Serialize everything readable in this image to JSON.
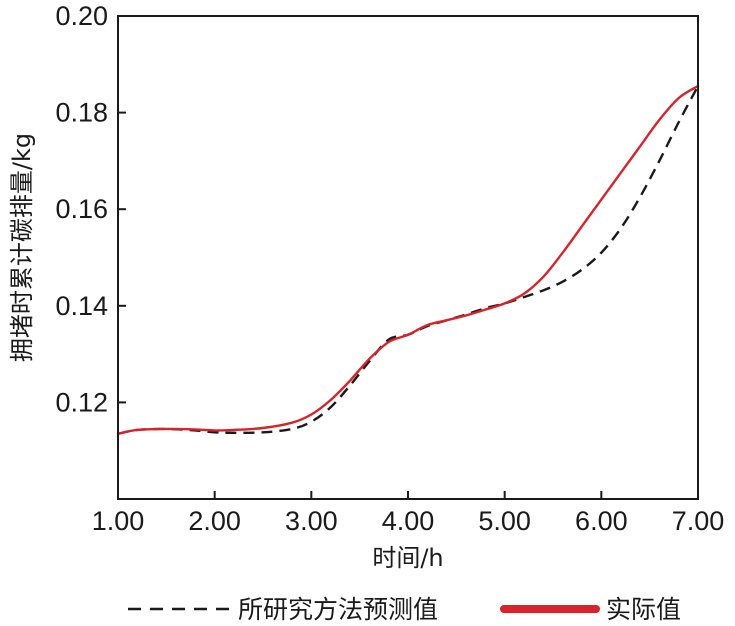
{
  "chart_data": {
    "type": "line",
    "xlabel": "时间/h",
    "ylabel": "拥堵时累计碳排量/kg",
    "xlim": [
      1.0,
      7.0
    ],
    "ylim": [
      0.1,
      0.2
    ],
    "x_ticks": [
      "1.00",
      "2.00",
      "3.00",
      "4.00",
      "5.00",
      "6.00",
      "7.00"
    ],
    "y_ticks": [
      "0.12",
      "0.14",
      "0.16",
      "0.18",
      "0.20"
    ],
    "grid": false,
    "legend_position": "bottom",
    "series": [
      {
        "name": "所研究方法预测值",
        "color": "#1a1a1a",
        "style": "dashed",
        "x": [
          1.0,
          1.2,
          1.5,
          1.8,
          2.0,
          2.2,
          2.5,
          2.8,
          3.0,
          3.2,
          3.4,
          3.6,
          3.8,
          4.0,
          4.2,
          4.4,
          4.6,
          4.8,
          5.0,
          5.2,
          5.4,
          5.6,
          5.8,
          6.0,
          6.2,
          6.4,
          6.6,
          6.8,
          7.0
        ],
        "y": [
          0.1135,
          0.1143,
          0.1145,
          0.1142,
          0.1138,
          0.1137,
          0.1138,
          0.1145,
          0.116,
          0.119,
          0.1235,
          0.1285,
          0.133,
          0.134,
          0.1358,
          0.137,
          0.1382,
          0.1395,
          0.1405,
          0.1418,
          0.1432,
          0.145,
          0.1475,
          0.151,
          0.156,
          0.1625,
          0.17,
          0.178,
          0.1855
        ]
      },
      {
        "name": "实际值",
        "color": "#d8232a",
        "style": "solid",
        "x": [
          1.0,
          1.2,
          1.5,
          1.8,
          2.0,
          2.2,
          2.5,
          2.8,
          3.0,
          3.2,
          3.4,
          3.6,
          3.8,
          4.0,
          4.2,
          4.4,
          4.6,
          4.8,
          5.0,
          5.2,
          5.4,
          5.6,
          5.8,
          6.0,
          6.2,
          6.4,
          6.6,
          6.8,
          7.0
        ],
        "y": [
          0.1135,
          0.1143,
          0.1145,
          0.1144,
          0.1142,
          0.1143,
          0.1147,
          0.1158,
          0.1175,
          0.1205,
          0.1245,
          0.129,
          0.1325,
          0.134,
          0.136,
          0.137,
          0.138,
          0.1392,
          0.1405,
          0.1425,
          0.146,
          0.151,
          0.1565,
          0.162,
          0.1675,
          0.173,
          0.1785,
          0.183,
          0.1855
        ]
      }
    ]
  }
}
